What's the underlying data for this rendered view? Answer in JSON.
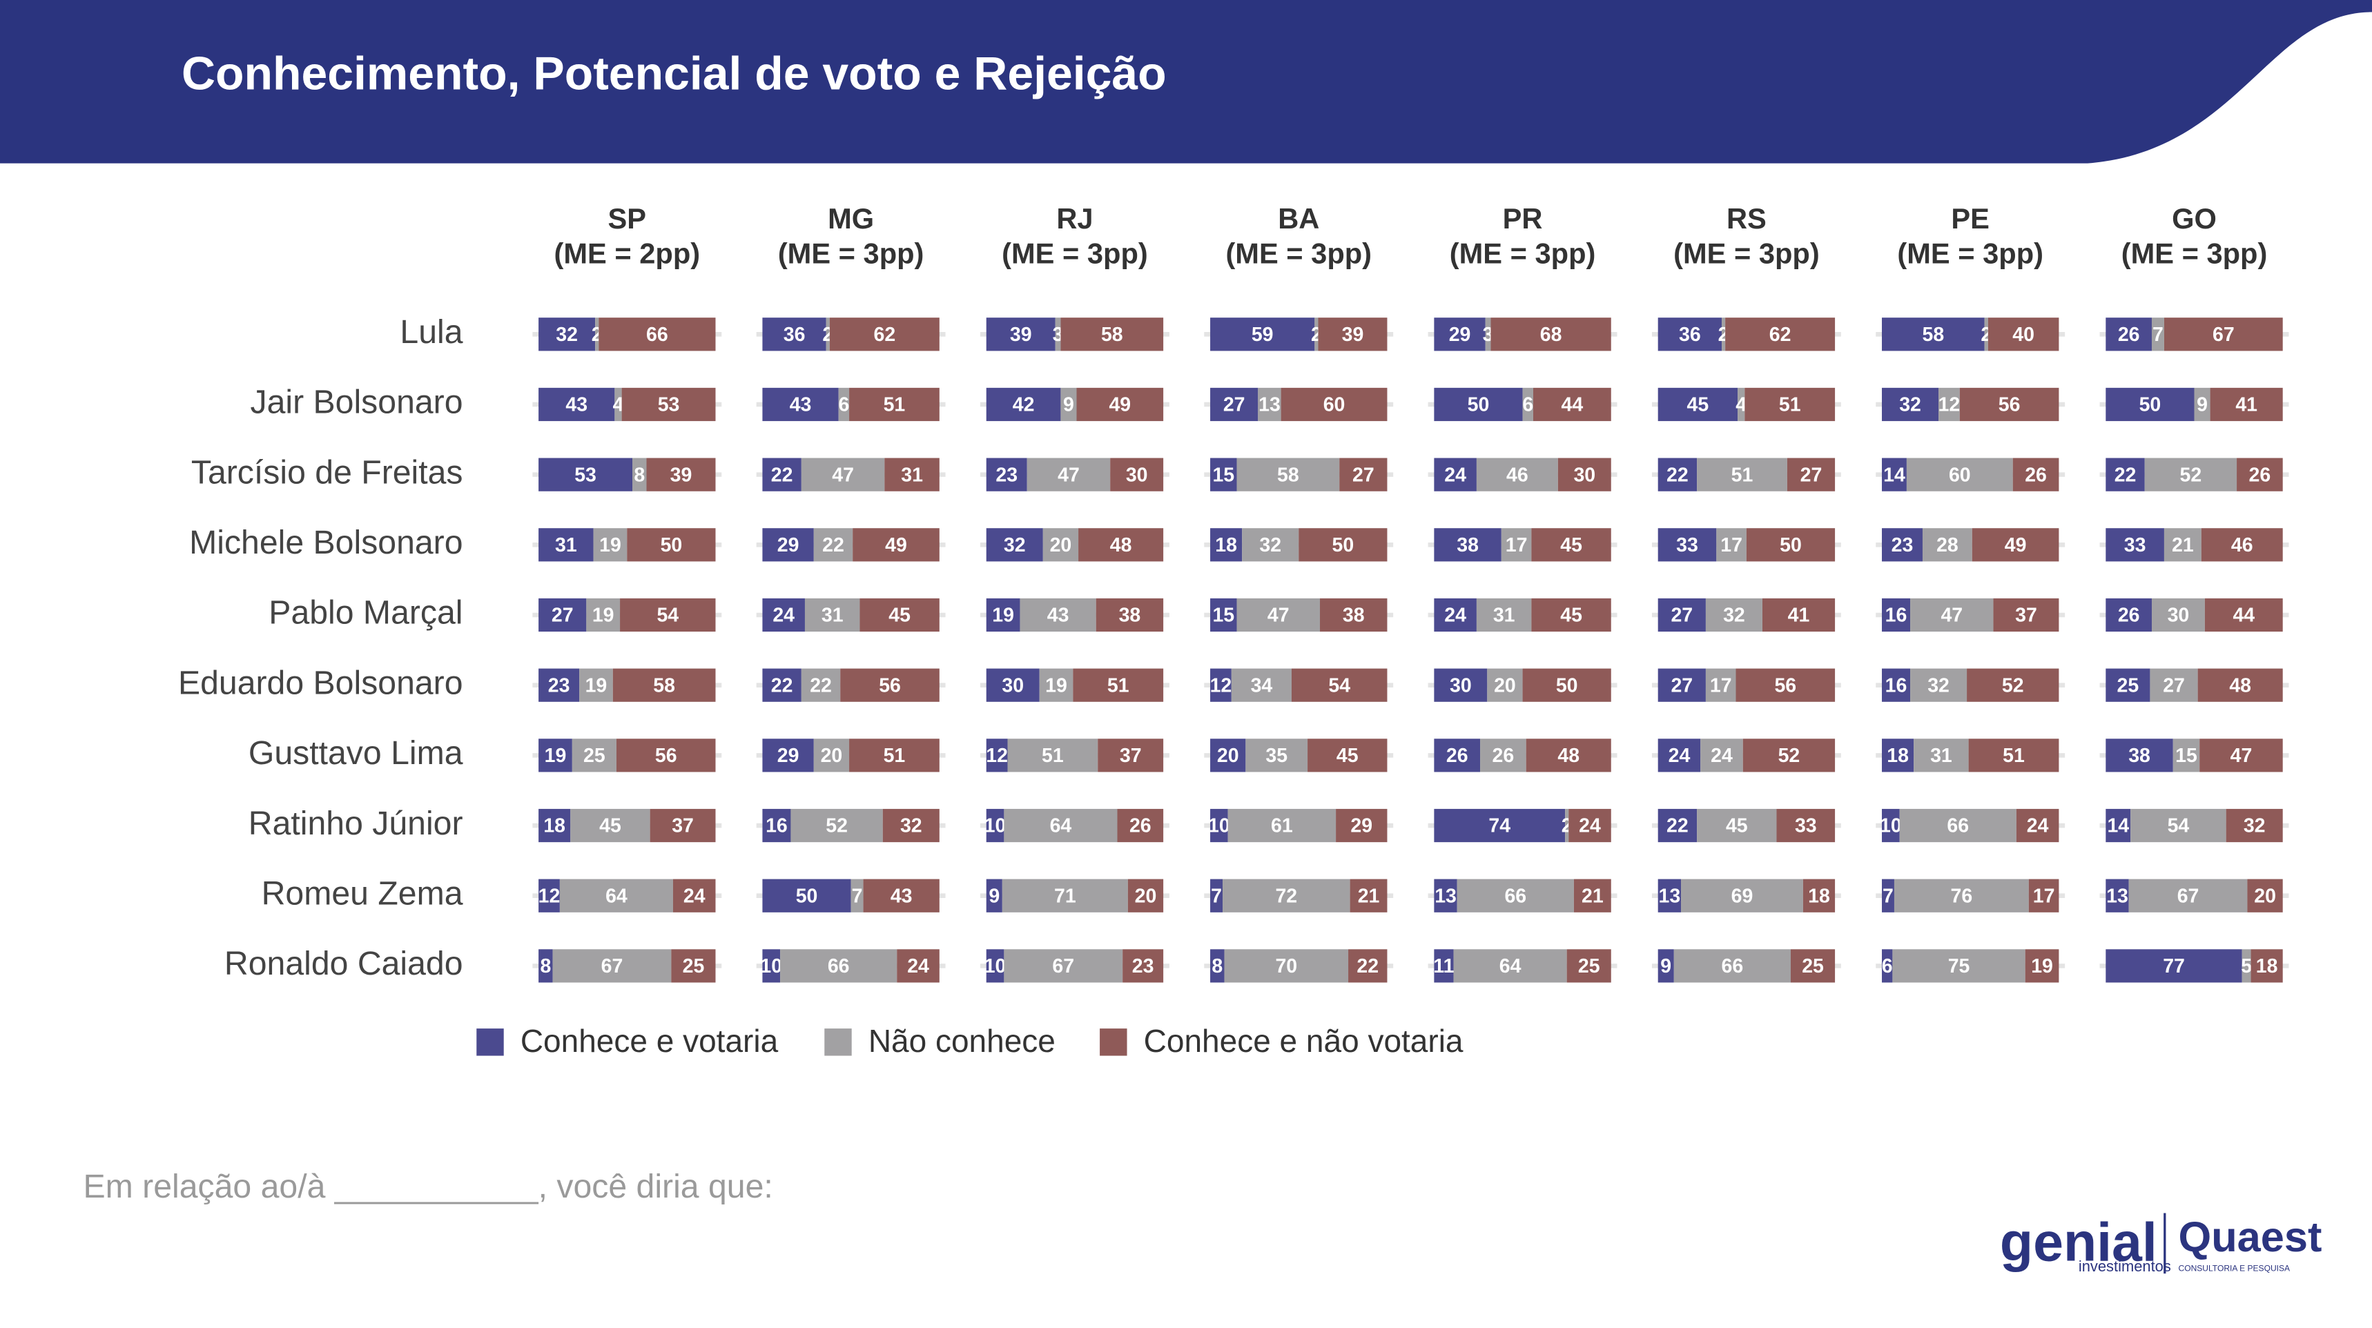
{
  "chart_data": {
    "type": "stacked-bar-panels",
    "title": "Conhecimento, Potencial de voto e Rejeição",
    "categories": [
      "Lula",
      "Jair Bolsonaro",
      "Tarcísio de Freitas",
      "Michele Bolsonaro",
      "Pablo Marçal",
      "Eduardo Bolsonaro",
      "Gusttavo Lima",
      "Ratinho Júnior",
      "Romeu Zema",
      "Ronaldo Caiado"
    ],
    "series": [
      {
        "name": "Conhece e votaria",
        "color": "#4b4a8f"
      },
      {
        "name": "Não conhece",
        "color": "#a2a1a3"
      },
      {
        "name": "Conhece e não votaria",
        "color": "#8f5a58"
      }
    ],
    "xlim": [
      0,
      100
    ],
    "panels": [
      {
        "title": "SP",
        "subtitle": "(ME = 2pp)",
        "series": [
          {
            "values": [
              32,
              43,
              53,
              31,
              27,
              23,
              19,
              18,
              12,
              8
            ]
          },
          {
            "values": [
              2,
              4,
              8,
              19,
              19,
              19,
              25,
              45,
              64,
              67
            ]
          },
          {
            "values": [
              66,
              53,
              39,
              50,
              54,
              58,
              56,
              37,
              24,
              25
            ]
          }
        ]
      },
      {
        "title": "MG",
        "subtitle": "(ME = 3pp)",
        "series": [
          {
            "values": [
              36,
              43,
              22,
              29,
              24,
              22,
              29,
              16,
              50,
              10
            ]
          },
          {
            "values": [
              2,
              6,
              47,
              22,
              31,
              22,
              20,
              52,
              7,
              66
            ]
          },
          {
            "values": [
              62,
              51,
              31,
              49,
              45,
              56,
              51,
              32,
              43,
              24
            ]
          }
        ]
      },
      {
        "title": "RJ",
        "subtitle": "(ME = 3pp)",
        "series": [
          {
            "values": [
              39,
              42,
              23,
              32,
              19,
              30,
              12,
              10,
              9,
              10
            ]
          },
          {
            "values": [
              3,
              9,
              47,
              20,
              43,
              19,
              51,
              64,
              71,
              67
            ]
          },
          {
            "values": [
              58,
              49,
              30,
              48,
              38,
              51,
              37,
              26,
              20,
              23
            ]
          }
        ]
      },
      {
        "title": "BA",
        "subtitle": "(ME = 3pp)",
        "series": [
          {
            "values": [
              59,
              27,
              15,
              18,
              15,
              12,
              20,
              10,
              7,
              8
            ]
          },
          {
            "values": [
              2,
              13,
              58,
              32,
              47,
              34,
              35,
              61,
              72,
              70
            ]
          },
          {
            "values": [
              39,
              60,
              27,
              50,
              38,
              54,
              45,
              29,
              21,
              22
            ]
          }
        ]
      },
      {
        "title": "PR",
        "subtitle": "(ME = 3pp)",
        "series": [
          {
            "values": [
              29,
              50,
              24,
              38,
              24,
              30,
              26,
              74,
              13,
              11
            ]
          },
          {
            "values": [
              3,
              6,
              46,
              17,
              31,
              20,
              26,
              2,
              66,
              64
            ]
          },
          {
            "values": [
              68,
              44,
              30,
              45,
              45,
              50,
              48,
              24,
              21,
              25
            ]
          }
        ]
      },
      {
        "title": "RS",
        "subtitle": "(ME = 3pp)",
        "series": [
          {
            "values": [
              36,
              45,
              22,
              33,
              27,
              27,
              24,
              22,
              13,
              9
            ]
          },
          {
            "values": [
              2,
              4,
              51,
              17,
              32,
              17,
              24,
              45,
              69,
              66
            ]
          },
          {
            "values": [
              62,
              51,
              27,
              50,
              41,
              56,
              52,
              33,
              18,
              25
            ]
          }
        ]
      },
      {
        "title": "PE",
        "subtitle": "(ME = 3pp)",
        "series": [
          {
            "values": [
              58,
              32,
              14,
              23,
              16,
              16,
              18,
              10,
              7,
              6
            ]
          },
          {
            "values": [
              2,
              12,
              60,
              28,
              47,
              32,
              31,
              66,
              76,
              75
            ]
          },
          {
            "values": [
              40,
              56,
              26,
              49,
              37,
              52,
              51,
              24,
              17,
              19
            ]
          }
        ]
      },
      {
        "title": "GO",
        "subtitle": "(ME = 3pp)",
        "series": [
          {
            "values": [
              26,
              50,
              22,
              33,
              26,
              25,
              38,
              14,
              13,
              77
            ]
          },
          {
            "values": [
              7,
              9,
              52,
              21,
              30,
              27,
              15,
              54,
              67,
              5
            ]
          },
          {
            "values": [
              67,
              41,
              26,
              46,
              44,
              48,
              47,
              32,
              20,
              18
            ]
          }
        ]
      }
    ]
  },
  "note": "Em relação ao/à ___________, você diria que:",
  "logos": {
    "genial": "genial",
    "genial_sub": "investimentos",
    "quaest": "Quaest",
    "quaest_sub": "CONSULTORIA E PESQUISA"
  }
}
